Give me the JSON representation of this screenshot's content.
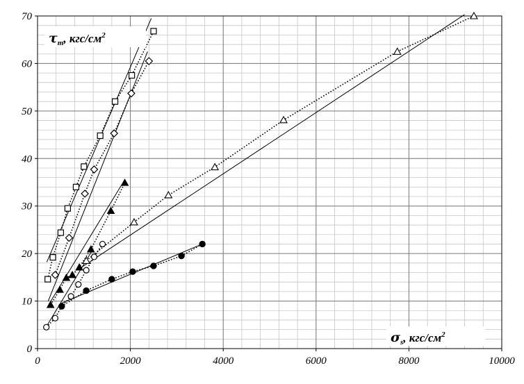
{
  "chart_data": {
    "type": "scatter",
    "xlim": [
      0,
      10000
    ],
    "ylim": [
      0,
      70
    ],
    "x_ticks": [
      0,
      2000,
      4000,
      6000,
      8000,
      10000
    ],
    "y_ticks": [
      0,
      10,
      20,
      30,
      40,
      50,
      60,
      70
    ],
    "x_tick_labels": [
      "0",
      "2000",
      "4000",
      "6000",
      "8000",
      "10000"
    ],
    "y_tick_labels": [
      "0",
      "10",
      "20",
      "30",
      "40",
      "50",
      "60",
      "70"
    ],
    "grid": true,
    "minor_x_step": 400,
    "minor_y_step": 2,
    "xlabel": {
      "symbol": "σ",
      "sub": "s",
      "text": ", кгс/см",
      "sup": "2"
    },
    "ylabel": {
      "symbol": "τ",
      "sub": "m",
      "text": ", кгс/см",
      "sup": "2"
    },
    "series": [
      {
        "marker": "square",
        "points": [
          [
            220,
            14.6
          ],
          [
            330,
            19.2
          ],
          [
            500,
            24.4
          ],
          [
            650,
            29.5
          ],
          [
            830,
            34.0
          ],
          [
            1000,
            38.3
          ],
          [
            1350,
            44.8
          ],
          [
            1670,
            52.0
          ],
          [
            2030,
            57.5
          ],
          [
            2500,
            66.8
          ]
        ],
        "trend": [
          [
            200,
            18.2
          ],
          [
            2450,
            69.5
          ]
        ]
      },
      {
        "marker": "diamond",
        "points": [
          [
            380,
            15.5
          ],
          [
            680,
            23.3
          ],
          [
            1020,
            32.6
          ],
          [
            1220,
            37.7
          ],
          [
            1650,
            45.3
          ],
          [
            2020,
            53.7
          ],
          [
            2400,
            60.5
          ]
        ],
        "trend": [
          [
            230,
            10.0
          ],
          [
            2370,
            62.5
          ]
        ]
      },
      {
        "marker": "filled-triangle",
        "points": [
          [
            280,
            9.2
          ],
          [
            480,
            12.4
          ],
          [
            620,
            14.9
          ],
          [
            750,
            15.5
          ],
          [
            900,
            17.1
          ],
          [
            1150,
            20.9
          ],
          [
            1580,
            29.0
          ],
          [
            1880,
            34.9
          ]
        ],
        "trend": [
          [
            250,
            9.4
          ],
          [
            1820,
            34.6
          ]
        ]
      },
      {
        "marker": "open-triangle",
        "points": [
          [
            1050,
            18.5
          ],
          [
            2080,
            26.6
          ],
          [
            2820,
            32.3
          ],
          [
            3820,
            38.2
          ],
          [
            5300,
            48.1
          ],
          [
            7750,
            62.5
          ],
          [
            9400,
            70.0
          ]
        ],
        "trend": [
          [
            900,
            16.8
          ],
          [
            9200,
            70.3
          ]
        ]
      },
      {
        "marker": "open-circle",
        "points": [
          [
            190,
            4.5
          ],
          [
            380,
            6.4
          ],
          [
            520,
            8.9
          ],
          [
            720,
            11.0
          ],
          [
            880,
            13.5
          ],
          [
            1050,
            16.5
          ],
          [
            1220,
            19.3
          ],
          [
            1400,
            22.0
          ]
        ],
        "trend": [
          [
            170,
            4.3
          ],
          [
            1200,
            21.0
          ]
        ]
      },
      {
        "marker": "filled-circle",
        "points": [
          [
            520,
            8.9
          ],
          [
            1050,
            12.2
          ],
          [
            1600,
            14.6
          ],
          [
            2050,
            16.2
          ],
          [
            2500,
            17.4
          ],
          [
            3100,
            19.5
          ],
          [
            3550,
            22.0
          ]
        ],
        "trend": [
          [
            480,
            9.4
          ],
          [
            3550,
            22.0
          ]
        ]
      }
    ]
  }
}
